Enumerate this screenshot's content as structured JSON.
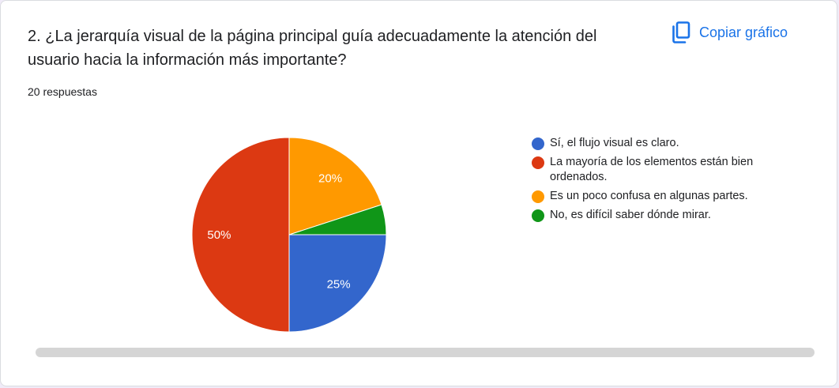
{
  "question": {
    "title": "2. ¿La jerarquía visual de la página principal guía adecuadamente la atención del usuario hacia la información más importante?",
    "responses": "20 respuestas"
  },
  "toolbar": {
    "copy_label": "Copiar gráfico",
    "copy_icon": "copy-icon"
  },
  "colors": {
    "accent": "#1a73e8"
  },
  "chart_data": {
    "type": "pie",
    "slices": [
      {
        "label": "Sí, el flujo visual es claro.",
        "value": 25,
        "percent_label": "25%",
        "color": "#3366cc"
      },
      {
        "label": "La mayoría de los elementos están bien ordenados.",
        "value": 50,
        "percent_label": "50%",
        "color": "#dc3912"
      },
      {
        "label": "Es un poco confusa en algunas partes.",
        "value": 20,
        "percent_label": "20%",
        "color": "#ff9900"
      },
      {
        "label": "No, es difícil saber dónde mirar.",
        "value": 5,
        "percent_label": "",
        "color": "#109618"
      }
    ],
    "legend_position": "right"
  }
}
